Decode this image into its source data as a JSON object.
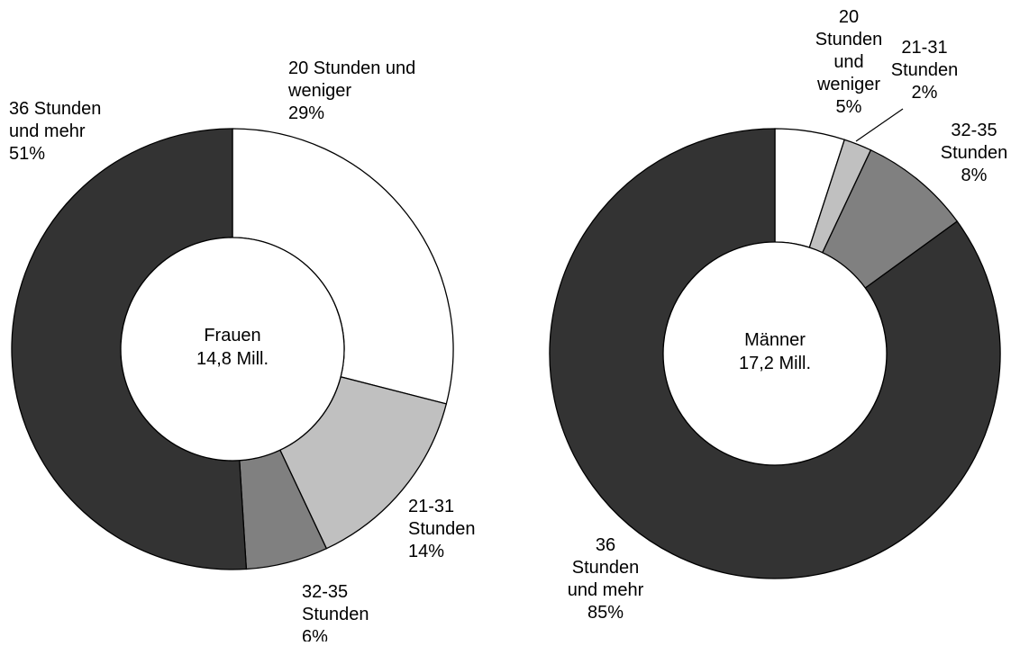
{
  "chart_data": [
    {
      "type": "pie",
      "style": "donut",
      "center_label": [
        "Frauen",
        "14,8 Mill."
      ],
      "slices": [
        {
          "category": "20 Stunden und weniger",
          "value": 29,
          "label_lines": [
            "20 Stunden und",
            "weniger",
            "29%"
          ],
          "color": "#ffffff"
        },
        {
          "category": "21-31 Stunden",
          "value": 14,
          "label_lines": [
            "21-31",
            "Stunden",
            "14%"
          ],
          "color": "#c0c0c0"
        },
        {
          "category": "32-35 Stunden",
          "value": 6,
          "label_lines": [
            "32-35",
            "Stunden",
            "6%"
          ],
          "color": "#808080"
        },
        {
          "category": "36 Stunden und mehr",
          "value": 51,
          "label_lines": [
            "36 Stunden",
            "und mehr",
            "51%"
          ],
          "color": "#333333"
        }
      ]
    },
    {
      "type": "pie",
      "style": "donut",
      "center_label": [
        "Männer",
        "17,2 Mill."
      ],
      "slices": [
        {
          "category": "20 Stunden und weniger",
          "value": 5,
          "label_lines": [
            "20",
            "Stunden",
            "und",
            "weniger",
            "5%"
          ],
          "color": "#ffffff"
        },
        {
          "category": "21-31 Stunden",
          "value": 2,
          "label_lines": [
            "21-31",
            "Stunden",
            "2%"
          ],
          "color": "#c0c0c0"
        },
        {
          "category": "32-35 Stunden",
          "value": 8,
          "label_lines": [
            "32-35",
            "Stunden",
            "8%"
          ],
          "color": "#808080"
        },
        {
          "category": "36 Stunden und mehr",
          "value": 85,
          "label_lines": [
            "36",
            "Stunden",
            "und mehr",
            "85%"
          ],
          "color": "#333333"
        }
      ]
    }
  ]
}
